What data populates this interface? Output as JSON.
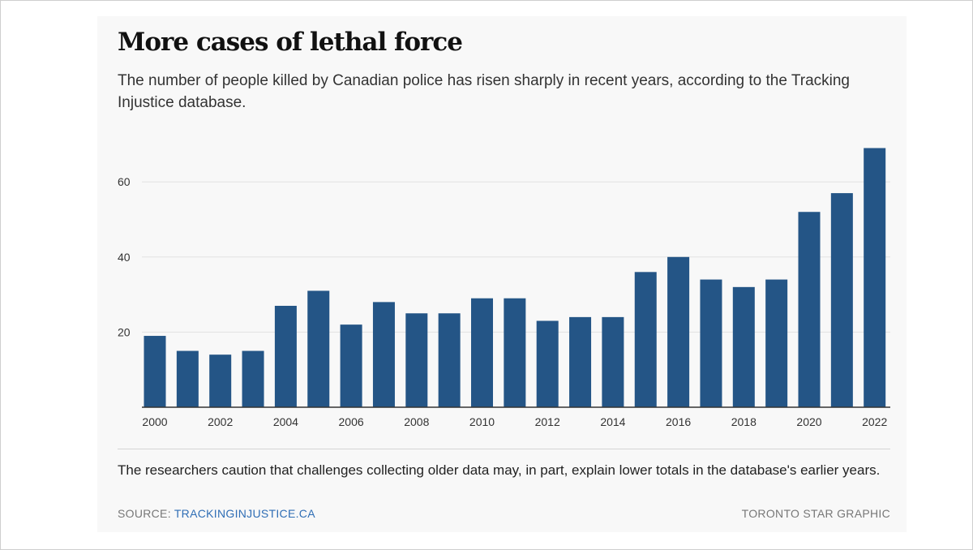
{
  "chart_data": {
    "type": "bar",
    "title": "More cases of lethal force",
    "subtitle": "The number of people killed by Canadian police has risen sharply in recent years, according to the Tracking Injustice database.",
    "categories": [
      "2000",
      "2001",
      "2002",
      "2003",
      "2004",
      "2005",
      "2006",
      "2007",
      "2008",
      "2009",
      "2010",
      "2011",
      "2012",
      "2013",
      "2014",
      "2015",
      "2016",
      "2017",
      "2018",
      "2019",
      "2020",
      "2021",
      "2022"
    ],
    "values": [
      19,
      15,
      14,
      15,
      27,
      31,
      22,
      28,
      25,
      25,
      29,
      29,
      23,
      24,
      24,
      36,
      40,
      34,
      32,
      34,
      52,
      57,
      69
    ],
    "x_tick_labels": [
      "2000",
      "2002",
      "2004",
      "2006",
      "2008",
      "2010",
      "2012",
      "2014",
      "2016",
      "2018",
      "2020",
      "2022"
    ],
    "y_ticks": [
      20,
      40,
      60
    ],
    "ylim": [
      0,
      70
    ],
    "xlabel": "",
    "ylabel": "",
    "grid": true,
    "bar_color": "#245586"
  },
  "footer": {
    "note": "The researchers caution that challenges collecting older data may, in part, explain lower totals in the database's earlier years.",
    "source_label": "SOURCE: ",
    "source_link": "TRACKINGINJUSTICE.CA",
    "credit": "TORONTO STAR GRAPHIC"
  },
  "colors": {
    "card_background": "#f8f8f8",
    "gridline": "#e2e2e2",
    "axis": "#333333",
    "link": "#2f6eb5"
  }
}
